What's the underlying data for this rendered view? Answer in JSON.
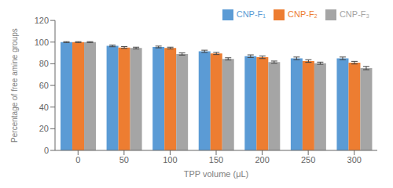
{
  "chart_data": {
    "type": "bar",
    "xlabel": "TPP volume (μL)",
    "ylabel": "Percentage of free amine groups",
    "categories": [
      "0",
      "50",
      "100",
      "150",
      "200",
      "250",
      "300"
    ],
    "series": [
      {
        "name": "CNP-F₁",
        "color": "#5B9BD5",
        "values": [
          100.0,
          96.5,
          95.5,
          91.5,
          87.0,
          85.0,
          85.0
        ],
        "errors": [
          0.4,
          0.8,
          0.8,
          1.0,
          1.2,
          1.2,
          1.2
        ]
      },
      {
        "name": "CNP-F₂",
        "color": "#ED7D31",
        "values": [
          100.0,
          95.0,
          94.5,
          89.5,
          86.0,
          82.5,
          81.0
        ],
        "errors": [
          0.4,
          0.8,
          0.8,
          1.0,
          1.2,
          1.2,
          1.2
        ]
      },
      {
        "name": "CNP-F₃",
        "color": "#A5A5A5",
        "values": [
          100.0,
          94.5,
          89.0,
          84.5,
          81.5,
          80.5,
          76.0
        ],
        "errors": [
          0.4,
          0.8,
          1.0,
          1.0,
          1.0,
          1.0,
          1.5
        ]
      }
    ],
    "ylim": [
      0,
      120
    ],
    "yticks": [
      0,
      20,
      40,
      60,
      80,
      100,
      120
    ],
    "grid": false,
    "legend": "upper right"
  }
}
